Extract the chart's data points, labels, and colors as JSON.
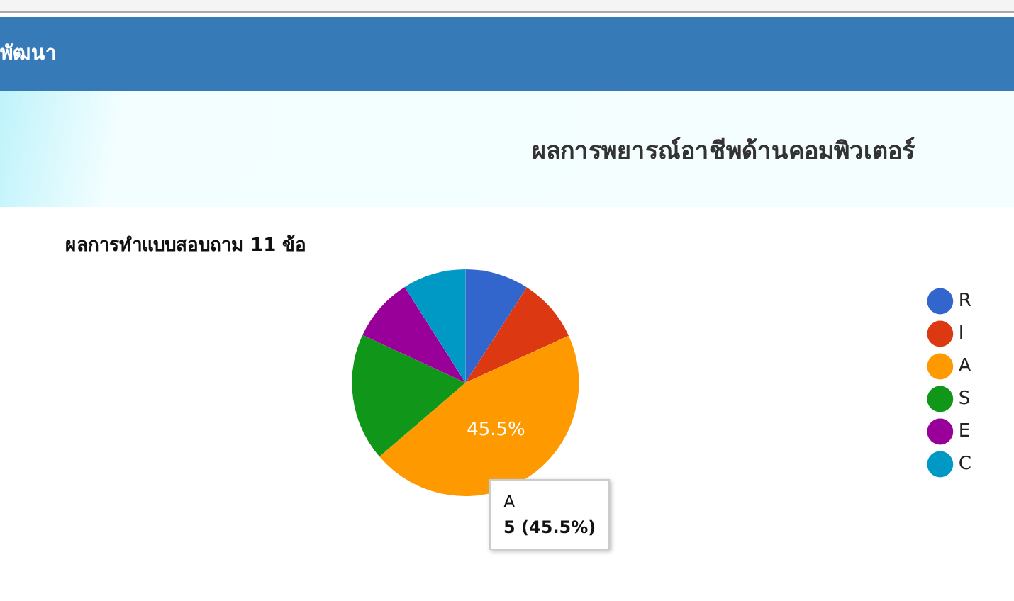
{
  "chart_data": {
    "type": "pie",
    "title": "ผลการพยารณ์อาชีพด้านคอมพิวเตอร์",
    "subtitle": "ผลการทำแบบสอบถาม 11 ข้อ",
    "categories": [
      "R",
      "I",
      "A",
      "S",
      "E",
      "C"
    ],
    "values": [
      9.1,
      9.1,
      45.5,
      18.2,
      9.1,
      9.0
    ],
    "colors": [
      "#3366cc",
      "#dc3912",
      "#ff9900",
      "#109618",
      "#990099",
      "#0099c6"
    ],
    "value_labels": [
      null,
      null,
      "45.5%",
      null,
      null,
      null
    ],
    "legend": "right",
    "annotations": [
      "พัฒนา",
      "A",
      "5 (45.5%)"
    ]
  }
}
